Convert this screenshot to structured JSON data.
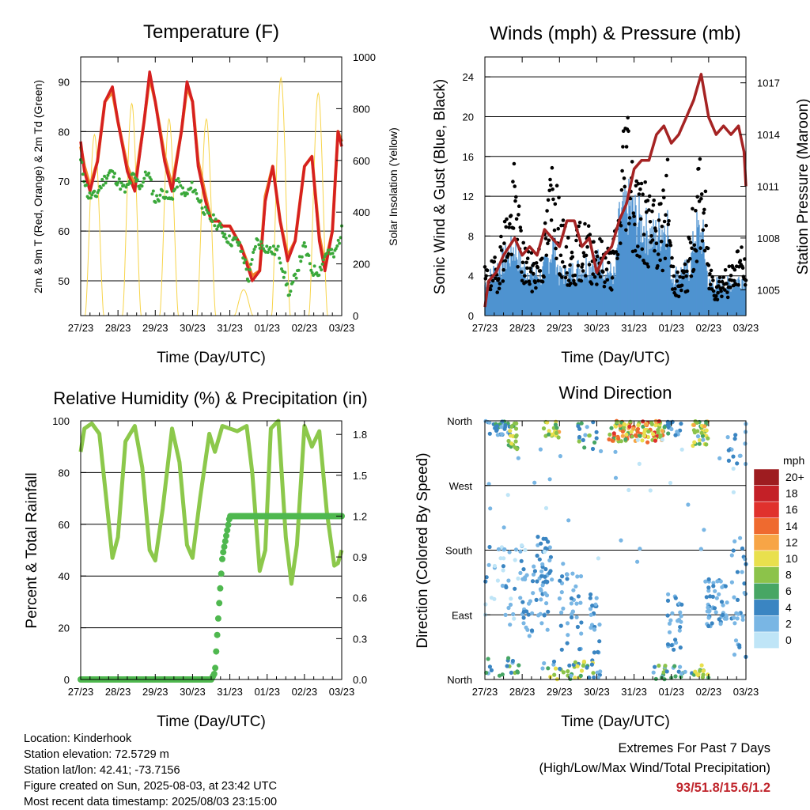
{
  "chart_data": [
    {
      "id": "temperature",
      "type": "line",
      "title": "Temperature (F)",
      "xlabel": "Time (Day/UTC)",
      "ylabel": "2m & 9m T (Red, Orange) & 2m Td (Green)",
      "y2label": "Solar Insolation (Yellow)",
      "x_ticks": [
        "27/23",
        "28/23",
        "29/23",
        "30/23",
        "31/23",
        "01/23",
        "02/23",
        "03/23"
      ],
      "xlim": [
        0,
        7
      ],
      "ylim": [
        43,
        95
      ],
      "y_ticks": [
        50,
        60,
        70,
        80,
        90
      ],
      "y2lim": [
        0,
        1000
      ],
      "y2_ticks": [
        0,
        200,
        400,
        600,
        800,
        1000
      ],
      "grid": true,
      "series": [
        {
          "name": "2m T",
          "color": "#d62020",
          "x": [
            0,
            0.1,
            0.25,
            0.45,
            0.65,
            0.85,
            1.0,
            1.25,
            1.45,
            1.7,
            1.85,
            2.0,
            2.25,
            2.45,
            2.7,
            2.85,
            3.0,
            3.15,
            3.35,
            3.5,
            3.7,
            3.8,
            4.0,
            4.3,
            4.6,
            4.8,
            4.95,
            5.15,
            5.35,
            5.55,
            5.75,
            6.0,
            6.2,
            6.4,
            6.55,
            6.75,
            6.9,
            7.0
          ],
          "y": [
            78,
            72,
            68,
            74,
            86,
            89,
            82,
            72,
            68,
            82,
            92,
            86,
            74,
            68,
            80,
            90,
            86,
            73,
            66,
            62,
            62,
            61,
            61,
            57,
            50,
            52,
            66,
            73,
            62,
            54,
            58,
            73,
            75,
            58,
            52,
            60,
            80,
            77
          ]
        },
        {
          "name": "9m T",
          "color": "#f0852b",
          "x": [
            0,
            0.1,
            0.25,
            0.45,
            0.65,
            0.85,
            1.0,
            1.25,
            1.45,
            1.7,
            1.85,
            2.0,
            2.25,
            2.45,
            2.7,
            2.85,
            3.0,
            3.15,
            3.35,
            3.5,
            3.7,
            3.8,
            4.0,
            4.3,
            4.6,
            4.8,
            4.95,
            5.15,
            5.35,
            5.55,
            5.75,
            6.0,
            6.2,
            6.4,
            6.55,
            6.75,
            6.9,
            7.0
          ],
          "y": [
            77,
            73,
            69,
            74,
            86,
            88,
            82,
            73,
            69,
            82,
            91,
            86,
            75,
            69,
            80,
            89,
            86,
            74,
            67,
            62,
            62,
            61,
            61,
            57,
            51,
            52,
            67,
            73,
            62,
            55,
            58,
            73,
            75,
            59,
            53,
            60,
            80,
            78
          ]
        },
        {
          "name": "2m Td",
          "color": "#3aa83a",
          "x": [
            0,
            0.2,
            0.4,
            0.6,
            0.8,
            1.0,
            1.2,
            1.4,
            1.6,
            1.8,
            2.0,
            2.2,
            2.4,
            2.6,
            2.8,
            3.0,
            3.2,
            3.4,
            3.6,
            3.8,
            4.0,
            4.2,
            4.4,
            4.5,
            4.7,
            4.9,
            5.1,
            5.3,
            5.5,
            5.6,
            5.8,
            6.0,
            6.2,
            6.4,
            6.6,
            6.8,
            7.0
          ],
          "y": [
            74,
            67,
            67,
            70,
            72,
            70,
            68,
            71,
            69,
            72,
            66,
            68,
            66,
            70,
            67,
            69,
            66,
            63,
            62,
            60,
            58,
            58,
            54,
            50,
            58,
            57,
            56,
            56,
            50,
            47,
            52,
            57,
            52,
            52,
            56,
            55,
            60
          ]
        },
        {
          "name": "Solar Insolation",
          "color": "#f7d44a",
          "axis": "y2",
          "days": [
            0,
            1,
            2,
            3,
            4,
            5,
            6
          ],
          "peaks": [
            700,
            820,
            760,
            760,
            100,
            920,
            860
          ]
        }
      ]
    },
    {
      "id": "winds",
      "type": "scatter",
      "title": "Winds (mph) & Pressure (mb)",
      "xlabel": "Time (Day/UTC)",
      "ylabel": "Sonic Wind & Gust (Blue, Black)",
      "y2label": "Station Pressure (Maroon)",
      "x_ticks": [
        "27/23",
        "28/23",
        "29/23",
        "30/23",
        "31/23",
        "01/23",
        "02/23",
        "03/23"
      ],
      "xlim": [
        0,
        7
      ],
      "ylim": [
        0,
        26
      ],
      "y_ticks": [
        0,
        4,
        8,
        12,
        16,
        20,
        24
      ],
      "y2lim": [
        1003.5,
        1018.5
      ],
      "y2_ticks": [
        1005,
        1008,
        1011,
        1014,
        1017
      ],
      "grid": true,
      "wind_envelope": {
        "name": "Sonic Wind",
        "color": "#4f93d1",
        "x": [
          0,
          0.3,
          0.7,
          0.8,
          1.0,
          1.5,
          1.85,
          2.0,
          2.5,
          3.0,
          3.5,
          3.6,
          3.85,
          4.0,
          4.5,
          4.9,
          5.0,
          5.5,
          5.65,
          5.85,
          6.0,
          6.5,
          7.0
        ],
        "max": [
          4,
          6,
          8,
          9,
          6,
          5,
          9,
          5,
          6,
          7,
          5,
          12,
          14,
          13,
          10,
          12,
          5,
          6,
          11,
          10,
          4,
          4,
          5
        ]
      },
      "gusts": {
        "name": "Gust",
        "color": "#000000",
        "x": [
          0,
          0.3,
          0.5,
          0.7,
          0.8,
          1.0,
          1.3,
          1.6,
          1.85,
          2.0,
          2.3,
          2.6,
          2.9,
          3.1,
          3.4,
          3.6,
          3.7,
          3.8,
          3.9,
          4.0,
          4.2,
          4.4,
          4.6,
          4.8,
          4.9,
          5.0,
          5.2,
          5.4,
          5.6,
          5.75,
          5.9,
          6.0,
          6.2,
          6.4,
          6.6,
          6.8,
          7.0
        ],
        "y": [
          5,
          6,
          10,
          13,
          16,
          8,
          6,
          9,
          19,
          11,
          7,
          10,
          9,
          8,
          7,
          12,
          20,
          24,
          21,
          16,
          14,
          13,
          11,
          13,
          17,
          7,
          4,
          6,
          12,
          17,
          14,
          6,
          4,
          5,
          5,
          8,
          6
        ]
      },
      "pressure": {
        "name": "Station Pressure",
        "color": "#a52323",
        "x": [
          0,
          0.1,
          0.3,
          0.5,
          0.8,
          1.0,
          1.2,
          1.4,
          1.6,
          1.8,
          2.0,
          2.2,
          2.4,
          2.6,
          2.8,
          3.0,
          3.2,
          3.4,
          3.6,
          3.8,
          4.0,
          4.2,
          4.4,
          4.6,
          4.8,
          5.0,
          5.2,
          5.4,
          5.6,
          5.8,
          6.0,
          6.2,
          6.4,
          6.6,
          6.8,
          6.95,
          7.0
        ],
        "y": [
          1004,
          1005.5,
          1006,
          1007,
          1008,
          1007,
          1007.5,
          1007,
          1008.5,
          1008,
          1007.5,
          1009,
          1009,
          1007.5,
          1008,
          1006,
          1007,
          1007.5,
          1009,
          1010,
          1012,
          1012.5,
          1012.5,
          1014,
          1014.5,
          1013.5,
          1014,
          1015,
          1016,
          1017.5,
          1015,
          1014,
          1014.5,
          1014,
          1014.5,
          1013,
          1011
        ]
      }
    },
    {
      "id": "humidity",
      "type": "line",
      "title": "Relative Humidity (%) & Precipitation (in)",
      "xlabel": "Time (Day/UTC)",
      "ylabel": "Percent & Total Rainfall",
      "x_ticks": [
        "27/23",
        "28/23",
        "29/23",
        "30/23",
        "31/23",
        "01/23",
        "02/23",
        "03/23"
      ],
      "xlim": [
        0,
        7
      ],
      "ylim": [
        0,
        100
      ],
      "y_ticks": [
        0,
        20,
        40,
        60,
        80,
        100
      ],
      "y2lim": [
        0,
        1.9
      ],
      "y2_ticks": [
        "0.0",
        "0.3",
        "0.6",
        "0.9",
        "1.2",
        "1.5",
        "1.8"
      ],
      "grid": true,
      "series": [
        {
          "name": "Relative Humidity",
          "color": "#8cc84b",
          "x": [
            0,
            0.1,
            0.3,
            0.5,
            0.7,
            0.85,
            1.0,
            1.2,
            1.45,
            1.65,
            1.85,
            2.0,
            2.2,
            2.45,
            2.65,
            2.85,
            3.0,
            3.2,
            3.45,
            3.6,
            3.8,
            4.0,
            4.2,
            4.45,
            4.6,
            4.8,
            4.95,
            5.1,
            5.3,
            5.5,
            5.65,
            5.8,
            6.0,
            6.2,
            6.4,
            6.6,
            6.8,
            6.9,
            7.0
          ],
          "y": [
            88,
            97,
            99,
            95,
            68,
            47,
            55,
            92,
            98,
            82,
            50,
            46,
            66,
            97,
            84,
            52,
            47,
            70,
            95,
            88,
            98,
            97,
            96,
            98,
            80,
            42,
            50,
            97,
            100,
            55,
            37,
            52,
            98,
            90,
            96,
            65,
            44,
            45,
            50
          ]
        },
        {
          "name": "Total Rainfall",
          "color": "#4fb84f",
          "axis": "y2",
          "x": [
            0,
            3.5,
            3.6,
            3.7,
            3.8,
            3.9,
            4.0,
            4.2,
            5.0,
            6.0,
            7.0
          ],
          "y": [
            0,
            0,
            0.05,
            0.5,
            0.9,
            1.05,
            1.2,
            1.2,
            1.2,
            1.2,
            1.2
          ]
        }
      ]
    },
    {
      "id": "direction",
      "type": "scatter",
      "title": "Wind Direction",
      "xlabel": "Time (Day/UTC)",
      "ylabel": "Direction (Colored By Speed)",
      "x_ticks": [
        "27/23",
        "28/23",
        "29/23",
        "30/23",
        "31/23",
        "01/23",
        "02/23",
        "03/23"
      ],
      "xlim": [
        0,
        7
      ],
      "y_ticks": [
        "North",
        "East",
        "South",
        "West",
        "North"
      ],
      "ylim": [
        0,
        360
      ],
      "grid": true,
      "legend": {
        "title": "mph",
        "labels": [
          "20+",
          "18",
          "16",
          "14",
          "12",
          "10",
          "8",
          "6",
          "4",
          "2",
          "0"
        ],
        "colors": [
          "#9e1c20",
          "#c42027",
          "#e0312d",
          "#ef6a2f",
          "#f7a546",
          "#e9e04d",
          "#8cc34a",
          "#47a664",
          "#3a85c2",
          "#79b6e4",
          "#bfe5f7"
        ]
      },
      "clusters": [
        {
          "x": [
            0,
            0.7
          ],
          "dir": [
            340,
            360
          ],
          "speed": [
            2,
            6
          ],
          "n": 28
        },
        {
          "x": [
            0.6,
            0.9
          ],
          "dir": [
            320,
            360
          ],
          "speed": [
            6,
            10
          ],
          "n": 20
        },
        {
          "x": [
            1.5,
            2.0
          ],
          "dir": [
            335,
            360
          ],
          "speed": [
            6,
            12
          ],
          "n": 24
        },
        {
          "x": [
            2.5,
            3.0
          ],
          "dir": [
            320,
            360
          ],
          "speed": [
            2,
            8
          ],
          "n": 18
        },
        {
          "x": [
            3.3,
            4.8
          ],
          "dir": [
            330,
            360
          ],
          "speed": [
            6,
            16
          ],
          "n": 110
        },
        {
          "x": [
            4.8,
            5.3
          ],
          "dir": [
            340,
            360
          ],
          "speed": [
            2,
            6
          ],
          "n": 16
        },
        {
          "x": [
            5.55,
            6.0
          ],
          "dir": [
            325,
            360
          ],
          "speed": [
            6,
            12
          ],
          "n": 30
        },
        {
          "x": [
            6.5,
            7.0
          ],
          "dir": [
            300,
            360
          ],
          "speed": [
            1,
            4
          ],
          "n": 14
        },
        {
          "x": [
            0,
            1.0
          ],
          "dir": [
            60,
            190
          ],
          "speed": [
            0,
            4
          ],
          "n": 40
        },
        {
          "x": [
            1.0,
            1.7
          ],
          "dir": [
            60,
            160
          ],
          "speed": [
            1,
            4
          ],
          "n": 50
        },
        {
          "x": [
            1.4,
            1.8
          ],
          "dir": [
            130,
            200
          ],
          "speed": [
            2,
            5
          ],
          "n": 24
        },
        {
          "x": [
            2.0,
            2.6
          ],
          "dir": [
            40,
            150
          ],
          "speed": [
            1,
            4
          ],
          "n": 36
        },
        {
          "x": [
            2.8,
            3.1
          ],
          "dir": [
            0,
            120
          ],
          "speed": [
            1,
            5
          ],
          "n": 28
        },
        {
          "x": [
            4.9,
            5.3
          ],
          "dir": [
            40,
            120
          ],
          "speed": [
            1,
            4
          ],
          "n": 28
        },
        {
          "x": [
            5.9,
            6.5
          ],
          "dir": [
            70,
            140
          ],
          "speed": [
            1,
            4
          ],
          "n": 50
        },
        {
          "x": [
            6.6,
            7.0
          ],
          "dir": [
            30,
            200
          ],
          "speed": [
            1,
            4
          ],
          "n": 30
        },
        {
          "x": [
            0,
            1.0
          ],
          "dir": [
            0,
            30
          ],
          "speed": [
            2,
            9
          ],
          "n": 18
        },
        {
          "x": [
            1.5,
            3.0
          ],
          "dir": [
            0,
            25
          ],
          "speed": [
            2,
            10
          ],
          "n": 36
        },
        {
          "x": [
            4.5,
            5.6
          ],
          "dir": [
            0,
            20
          ],
          "speed": [
            2,
            8
          ],
          "n": 24
        },
        {
          "x": [
            5.6,
            6.0
          ],
          "dir": [
            0,
            20
          ],
          "speed": [
            6,
            10
          ],
          "n": 14
        },
        {
          "x": [
            0,
            7.0
          ],
          "dir": [
            160,
            340
          ],
          "speed": [
            0,
            3
          ],
          "n": 40
        }
      ]
    }
  ],
  "info": {
    "location": "Location: Kinderhook",
    "elevation": "Station elevation: 72.5729 m",
    "latlon": "Station lat/lon: 42.41; -73.7156",
    "created": "Figure created on Sun, 2025-08-03, at 23:42 UTC",
    "recent": "Most recent data timestamp: 2025/08/03 23:15:00"
  },
  "extremes": {
    "line1": "Extremes For Past 7 Days",
    "line2": "(High/Low/Max Wind/Total Precipitation)",
    "values": "93/51.8/15.6/1.2"
  }
}
